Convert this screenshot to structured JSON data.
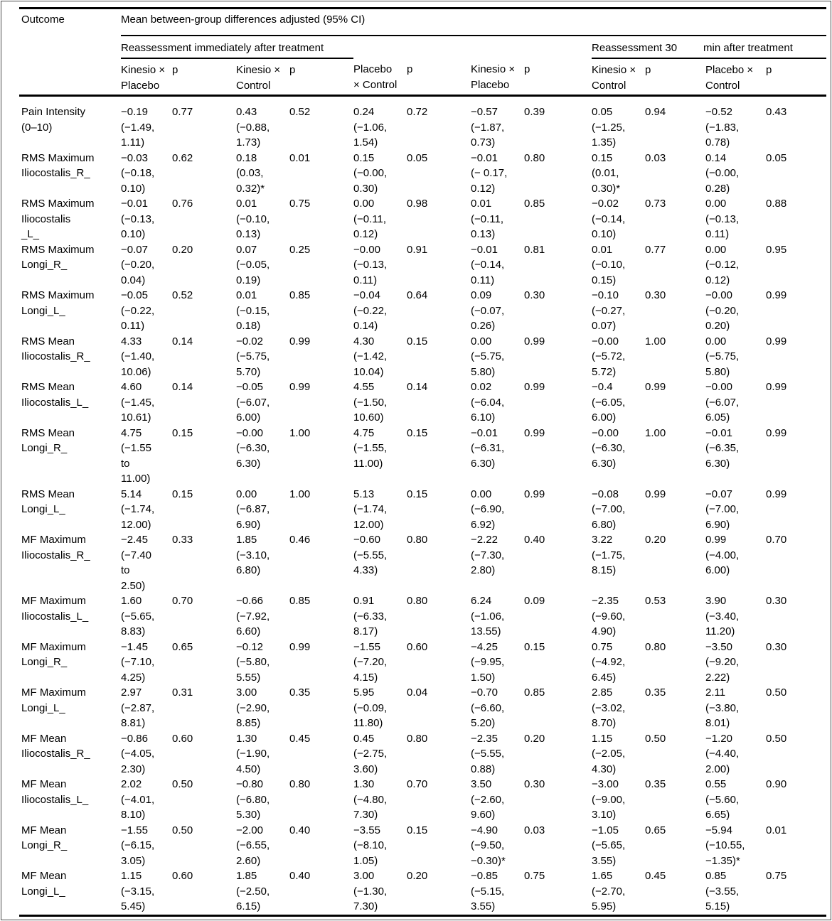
{
  "table": {
    "outcome_header": "Outcome",
    "main_header": "Mean between-group differences adjusted (95% CI)",
    "group1_header": "Reassessment immediately after treatment",
    "group2_header_part1": "Reassessment 30",
    "group2_header_part2": "min after treatment",
    "col_headers": [
      "Kinesio ×\nPlacebo",
      "p",
      "Kinesio ×\nControl",
      "p",
      "Placebo\n× Control",
      "p",
      "Kinesio ×\nPlacebo",
      "p",
      "Kinesio ×\nControl",
      "p",
      "Placebo ×\nControl",
      "p"
    ],
    "rows": [
      {
        "outcome": "Pain Intensity\n(0–10)",
        "cells": [
          "−0.19\n(−1.49,\n1.11)",
          "0.77",
          "0.43\n(−0.88,\n1.73)",
          "0.52",
          "0.24\n(−1.06,\n1.54)",
          "0.72",
          "−0.57\n(−1.87,\n0.73)",
          "0.39",
          "0.05\n(−1.25,\n1.35)",
          "0.94",
          "−0.52\n(−1.83,\n0.78)",
          "0.43"
        ]
      },
      {
        "outcome": "RMS Maximum\nIliocostalis_R_",
        "cells": [
          "−0.03\n(−0.18,\n0.10)",
          "0.62",
          "0.18\n(0.03,\n0.32)*",
          "0.01",
          "0.15\n(−0.00,\n0.30)",
          "0.05",
          "−0.01\n(− 0.17,\n0.12)",
          "0.80",
          "0.15\n(0.01,\n0.30)*",
          "0.03",
          "0.14\n(−0.00,\n0.28)",
          "0.05"
        ]
      },
      {
        "outcome": "RMS Maximum\nIliocostalis\n_L_",
        "cells": [
          "−0.01\n(−0.13,\n0.10)",
          "0.76",
          "0.01\n(−0.10,\n0.13)",
          "0.75",
          "0.00\n(−0.11,\n0.12)",
          "0.98",
          "0.01\n(−0.11,\n0.13)",
          "0.85",
          "−0.02\n(−0.14,\n0.10)",
          "0.73",
          "0.00\n(−0.13,\n0.11)",
          "0.88"
        ]
      },
      {
        "outcome": "RMS Maximum\nLongi_R_",
        "cells": [
          "−0.07\n(−0.20,\n0.04)",
          "0.20",
          "0.07\n(−0.05,\n0.19)",
          "0.25",
          "−0.00\n(−0.13,\n0.11)",
          "0.91",
          "−0.01\n(−0.14,\n0.11)",
          "0.81",
          "0.01\n(−0.10,\n0.15)",
          "0.77",
          "0.00\n(−0.12,\n0.12)",
          "0.95"
        ]
      },
      {
        "outcome": "RMS Maximum\nLongi_L_",
        "cells": [
          "−0.05\n(−0.22,\n0.11)",
          "0.52",
          "0.01\n(−0.15,\n0.18)",
          "0.85",
          "−0.04\n(−0.22,\n0.14)",
          "0.64",
          "0.09\n(−0.07,\n0.26)",
          "0.30",
          "−0.10\n(−0.27,\n0.07)",
          "0.30",
          "−0.00\n(−0.20,\n0.20)",
          "0.99"
        ]
      },
      {
        "outcome": "RMS Mean\nIliocostalis_R_",
        "cells": [
          "4.33\n(−1.40,\n10.06)",
          "0.14",
          "−0.02\n(−5.75,\n5.70)",
          "0.99",
          "4.30\n(−1.42,\n10.04)",
          "0.15",
          "0.00\n(−5.75,\n5.80)",
          "0.99",
          "−0.00\n(−5.72,\n5.72)",
          "1.00",
          "0.00\n(−5.75,\n5.80)",
          "0.99"
        ]
      },
      {
        "outcome": "RMS Mean\nIliocostalis_L_",
        "cells": [
          "4.60\n(−1.45,\n10.61)",
          "0.14",
          "−0.05\n(−6.07,\n6.00)",
          "0.99",
          "4.55\n(−1.50,\n10.60)",
          "0.14",
          "0.02\n(−6.04,\n6.10)",
          "0.99",
          "−0.4\n(−6.05,\n6.00)",
          "0.99",
          "−0.00\n(−6.07,\n6.05)",
          "0.99"
        ]
      },
      {
        "outcome": "RMS Mean\nLongi_R_",
        "cells": [
          "4.75\n(−1.55\nto\n11.00)",
          "0.15",
          "−0.00\n(−6.30,\n6.30)",
          "1.00",
          "4.75\n(−1.55,\n11.00)",
          "0.15",
          "−0.01\n(−6.31,\n6.30)",
          "0.99",
          "−0.00\n(−6.30,\n6.30)",
          "1.00",
          "−0.01\n(−6.35,\n6.30)",
          "0.99"
        ]
      },
      {
        "outcome": "RMS Mean\nLongi_L_",
        "cells": [
          "5.14\n(−1.74,\n12.00)",
          "0.15",
          "0.00\n(−6.87,\n6.90)",
          "1.00",
          "5.13\n(−1.74,\n12.00)",
          "0.15",
          "0.00\n(−6.90,\n6.92)",
          "0.99",
          "−0.08\n(−7.00,\n6.80)",
          "0.99",
          "−0.07\n(−7.00,\n6.90)",
          "0.99"
        ]
      },
      {
        "outcome": "MF Maximum\nIliocostalis_R_",
        "cells": [
          "−2.45\n(−7.40\nto\n2.50)",
          "0.33",
          "1.85\n(−3.10,\n6.80)",
          "0.46",
          "−0.60\n(−5.55,\n4.33)",
          "0.80",
          "−2.22\n(−7.30,\n2.80)",
          "0.40",
          "3.22\n(−1.75,\n8.15)",
          "0.20",
          "0.99\n(−4.00,\n6.00)",
          "0.70"
        ]
      },
      {
        "outcome": "MF Maximum\nIliocostalis_L_",
        "cells": [
          "1.60\n(−5.65,\n8.83)",
          "0.70",
          "−0.66\n(−7.92,\n6.60)",
          "0.85",
          "0.91\n(−6.33,\n8.17)",
          "0.80",
          "6.24\n(−1.06,\n13.55)",
          "0.09",
          "−2.35\n(−9.60,\n4.90)",
          "0.53",
          "3.90\n(−3.40,\n11.20)",
          "0.30"
        ]
      },
      {
        "outcome": "MF Maximum\nLongi_R_",
        "cells": [
          "−1.45\n(−7.10,\n4.25)",
          "0.65",
          "−0.12\n(−5.80,\n5.55)",
          "0.99",
          "−1.55\n(−7.20,\n4.15)",
          "0.60",
          "−4.25\n(−9.95,\n1.50)",
          "0.15",
          "0.75\n(−4.92,\n6.45)",
          "0.80",
          "−3.50\n(−9.20,\n2.22)",
          "0.30"
        ]
      },
      {
        "outcome": "MF Maximum\nLongi_L_",
        "cells": [
          "2.97\n(−2.87,\n8.81)",
          "0.31",
          "3.00\n(−2.90,\n8.85)",
          "0.35",
          "5.95\n(−0.09,\n11.80)",
          "0.04",
          "−0.70\n(−6.60,\n5.20)",
          "0.85",
          "2.85\n(−3.02,\n8.70)",
          "0.35",
          "2.11\n(−3.80,\n8.01)",
          "0.50"
        ]
      },
      {
        "outcome": "MF Mean\nIliocostalis_R_",
        "cells": [
          "−0.86\n(−4.05,\n2.30)",
          "0.60",
          "1.30\n(−1.90,\n4.50)",
          "0.45",
          "0.45\n(−2.75,\n3.60)",
          "0.80",
          "−2.35\n(−5.55,\n0.88)",
          "0.20",
          "1.15\n(−2.05,\n4.30)",
          "0.50",
          "−1.20\n(−4.40,\n2.00)",
          "0.50"
        ]
      },
      {
        "outcome": "MF Mean\nIliocostalis_L_",
        "cells": [
          "2.02\n(−4.01,\n8.10)",
          "0.50",
          "−0.80\n(−6.80,\n5.30)",
          "0.80",
          "1.30\n(−4.80,\n7.30)",
          "0.70",
          "3.50\n(−2.60,\n9.60)",
          "0.30",
          "−3.00\n(−9.00,\n3.10)",
          "0.35",
          "0.55\n(−5.60,\n6.65)",
          "0.90"
        ]
      },
      {
        "outcome": "MF Mean\nLongi_R_",
        "cells": [
          "−1.55\n(−6.15,\n3.05)",
          "0.50",
          "−2.00\n(−6.55,\n2.60)",
          "0.40",
          "−3.55\n(−8.10,\n1.05)",
          "0.15",
          "−4.90\n(−9.50,\n−0.30)*",
          "0.03",
          "−1.05\n(−5.65,\n3.55)",
          "0.65",
          "−5.94\n(−10.55,\n−1.35)*",
          "0.01"
        ]
      },
      {
        "outcome": "MF Mean\nLongi_L_",
        "cells": [
          "1.15\n(−3.15,\n5.45)",
          "0.60",
          "1.85\n(−2.50,\n6.15)",
          "0.40",
          "3.00\n(−1.30,\n7.30)",
          "0.20",
          "−0.85\n(−5.15,\n3.55)",
          "0.75",
          "1.65\n(−2.70,\n5.95)",
          "0.45",
          "0.85\n(−3.55,\n5.15)",
          "0.75"
        ]
      }
    ]
  }
}
